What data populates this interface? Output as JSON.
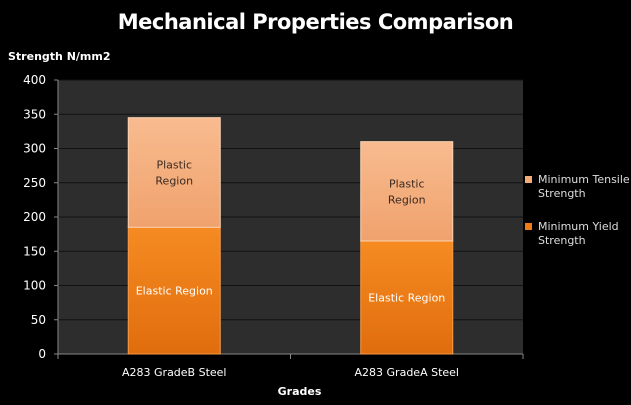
{
  "chart_data": {
    "type": "bar",
    "stacked": true,
    "title": "Mechanical Properties Comparison",
    "ylabel": "Strength N/mm2",
    "xlabel": "Grades",
    "ylim": [
      0,
      400
    ],
    "yticks": [
      0,
      50,
      100,
      150,
      200,
      250,
      300,
      350,
      400
    ],
    "grid": true,
    "legend_position": "right",
    "categories": [
      "A283 GradeB Steel",
      "A283 GradeA Steel"
    ],
    "series": [
      {
        "name": "Minimum Yield Strength",
        "values": [
          185,
          165
        ],
        "color": "#f07b16",
        "segment_labels": [
          "Elastic Region",
          "Elastic Region"
        ]
      },
      {
        "name": "Minimum Tensile Strength",
        "values": [
          160,
          145
        ],
        "color": "#f5ab78",
        "segment_labels": [
          "Plastic Region",
          "Plastic Region"
        ]
      }
    ],
    "colors": {
      "background": "#000000",
      "plot_area": "#2d2d2d",
      "grid": "#111111"
    }
  }
}
